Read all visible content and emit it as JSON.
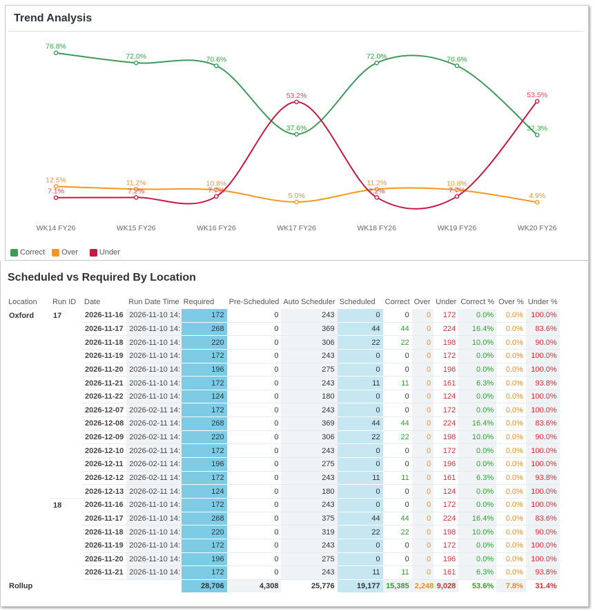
{
  "trend": {
    "title": "Trend Analysis",
    "legend": [
      {
        "label": "Correct",
        "color": "#3a9a57"
      },
      {
        "label": "Over",
        "color": "#f7961f"
      },
      {
        "label": "Under",
        "color": "#c8163f"
      }
    ]
  },
  "chart_data": {
    "type": "line",
    "title": "Trend Analysis",
    "xlabel": "",
    "ylabel": "",
    "categories": [
      "WK14 FY26",
      "WK15 FY26",
      "WK16 FY26",
      "WK17 FY26",
      "WK18 FY26",
      "WK19 FY26",
      "WK20 FY26"
    ],
    "series": [
      {
        "name": "Correct",
        "color": "#3a9a57",
        "label_color": "#2eaa3a",
        "values": [
          76.8,
          72.0,
          70.6,
          37.6,
          72.0,
          70.6,
          37.3
        ],
        "labels": [
          "76.8%",
          "72.0%",
          "70.6%",
          "37.6%",
          "72.0%",
          "70.6%",
          "37.3%"
        ]
      },
      {
        "name": "Over",
        "color": "#f7961f",
        "label_color": "#f0932f",
        "values": [
          12.5,
          11.2,
          10.8,
          5.0,
          11.2,
          10.8,
          4.9
        ],
        "labels": [
          "12.5%",
          "11.2%",
          "10.8%",
          "5.0%",
          "11.2%",
          "10.8%",
          "4.9%"
        ]
      },
      {
        "name": "Under",
        "color": "#c8163f",
        "label_color": "#f0434f",
        "values": [
          7.1,
          7.2,
          7.7,
          53.2,
          7.2,
          7.7,
          53.5
        ],
        "labels": [
          "7.1%",
          "7.2%",
          "7.7%",
          "53.2%",
          "7.2%",
          "7.7%",
          "53.5%"
        ]
      }
    ],
    "ylim": [
      0,
      85
    ],
    "grid": false,
    "legend_position": "bottom-left"
  },
  "table": {
    "title": "Scheduled vs Required By Location",
    "columns": [
      "Location",
      "Run ID",
      "Date",
      "Run Date Time",
      "Required",
      "Pre-Scheduled",
      "Auto Scheduler",
      "Scheduled",
      "Correct",
      "Over",
      "Under",
      "Correct %",
      "Over %",
      "Under %"
    ],
    "rows": [
      {
        "location": "Oxford",
        "run_id": "17",
        "date": "2026-11-16",
        "run_dt": "2026-11-10 14:",
        "required": "172",
        "pre": "0",
        "auto": "243",
        "scheduled": "0",
        "correct": "0",
        "over": "0",
        "under": "172",
        "correct_pct": "0.0%",
        "over_pct": "0.0%",
        "under_pct": "100.0%"
      },
      {
        "location": "",
        "run_id": "",
        "date": "2026-11-17",
        "run_dt": "2026-11-10 14:",
        "required": "268",
        "pre": "0",
        "auto": "369",
        "scheduled": "44",
        "correct": "44",
        "over": "0",
        "under": "224",
        "correct_pct": "16.4%",
        "over_pct": "0.0%",
        "under_pct": "83.6%"
      },
      {
        "location": "",
        "run_id": "",
        "date": "2026-11-18",
        "run_dt": "2026-11-10 14:",
        "required": "220",
        "pre": "0",
        "auto": "306",
        "scheduled": "22",
        "correct": "22",
        "over": "0",
        "under": "198",
        "correct_pct": "10.0%",
        "over_pct": "0.0%",
        "under_pct": "90.0%"
      },
      {
        "location": "",
        "run_id": "",
        "date": "2026-11-19",
        "run_dt": "2026-11-10 14:",
        "required": "172",
        "pre": "0",
        "auto": "243",
        "scheduled": "0",
        "correct": "0",
        "over": "0",
        "under": "172",
        "correct_pct": "0.0%",
        "over_pct": "0.0%",
        "under_pct": "100.0%"
      },
      {
        "location": "",
        "run_id": "",
        "date": "2026-11-20",
        "run_dt": "2026-11-10 14:",
        "required": "196",
        "pre": "0",
        "auto": "275",
        "scheduled": "0",
        "correct": "0",
        "over": "0",
        "under": "196",
        "correct_pct": "0.0%",
        "over_pct": "0.0%",
        "under_pct": "100.0%"
      },
      {
        "location": "",
        "run_id": "",
        "date": "2026-11-21",
        "run_dt": "2026-11-10 14:",
        "required": "172",
        "pre": "0",
        "auto": "243",
        "scheduled": "11",
        "correct": "11",
        "over": "0",
        "under": "161",
        "correct_pct": "6.3%",
        "over_pct": "0.0%",
        "under_pct": "93.8%"
      },
      {
        "location": "",
        "run_id": "",
        "date": "2026-11-22",
        "run_dt": "2026-11-10 14:",
        "required": "124",
        "pre": "0",
        "auto": "180",
        "scheduled": "0",
        "correct": "0",
        "over": "0",
        "under": "124",
        "correct_pct": "0.0%",
        "over_pct": "0.0%",
        "under_pct": "100.0%"
      },
      {
        "location": "",
        "run_id": "",
        "date": "2026-12-07",
        "run_dt": "2026-02-11 14:",
        "required": "172",
        "pre": "0",
        "auto": "243",
        "scheduled": "0",
        "correct": "0",
        "over": "0",
        "under": "172",
        "correct_pct": "0.0%",
        "over_pct": "0.0%",
        "under_pct": "100.0%"
      },
      {
        "location": "",
        "run_id": "",
        "date": "2026-12-08",
        "run_dt": "2026-02-11 14:",
        "required": "268",
        "pre": "0",
        "auto": "369",
        "scheduled": "44",
        "correct": "44",
        "over": "0",
        "under": "224",
        "correct_pct": "16.4%",
        "over_pct": "0.0%",
        "under_pct": "83.6%"
      },
      {
        "location": "",
        "run_id": "",
        "date": "2026-12-09",
        "run_dt": "2026-02-11 14:",
        "required": "220",
        "pre": "0",
        "auto": "306",
        "scheduled": "22",
        "correct": "22",
        "over": "0",
        "under": "198",
        "correct_pct": "10.0%",
        "over_pct": "0.0%",
        "under_pct": "90.0%"
      },
      {
        "location": "",
        "run_id": "",
        "date": "2026-12-10",
        "run_dt": "2026-02-11 14:",
        "required": "172",
        "pre": "0",
        "auto": "243",
        "scheduled": "0",
        "correct": "0",
        "over": "0",
        "under": "172",
        "correct_pct": "0.0%",
        "over_pct": "0.0%",
        "under_pct": "100.0%"
      },
      {
        "location": "",
        "run_id": "",
        "date": "2026-12-11",
        "run_dt": "2026-02-11 14:",
        "required": "196",
        "pre": "0",
        "auto": "275",
        "scheduled": "0",
        "correct": "0",
        "over": "0",
        "under": "196",
        "correct_pct": "0.0%",
        "over_pct": "0.0%",
        "under_pct": "100.0%"
      },
      {
        "location": "",
        "run_id": "",
        "date": "2026-12-12",
        "run_dt": "2026-02-11 14:",
        "required": "172",
        "pre": "0",
        "auto": "243",
        "scheduled": "11",
        "correct": "11",
        "over": "0",
        "under": "161",
        "correct_pct": "6.3%",
        "over_pct": "0.0%",
        "under_pct": "93.8%"
      },
      {
        "location": "",
        "run_id": "",
        "date": "2026-12-13",
        "run_dt": "2026-02-11 14:",
        "required": "124",
        "pre": "0",
        "auto": "180",
        "scheduled": "0",
        "correct": "0",
        "over": "0",
        "under": "124",
        "correct_pct": "0.0%",
        "over_pct": "0.0%",
        "under_pct": "100.0%"
      },
      {
        "location": "",
        "run_id": "18",
        "date": "2026-11-16",
        "run_dt": "2026-11-10 14:",
        "required": "172",
        "pre": "0",
        "auto": "243",
        "scheduled": "0",
        "correct": "0",
        "over": "0",
        "under": "172",
        "correct_pct": "0.0%",
        "over_pct": "0.0%",
        "under_pct": "100.0%"
      },
      {
        "location": "",
        "run_id": "",
        "date": "2026-11-17",
        "run_dt": "2026-11-10 14:",
        "required": "268",
        "pre": "0",
        "auto": "375",
        "scheduled": "44",
        "correct": "44",
        "over": "0",
        "under": "224",
        "correct_pct": "16.4%",
        "over_pct": "0.0%",
        "under_pct": "83.6%"
      },
      {
        "location": "",
        "run_id": "",
        "date": "2026-11-18",
        "run_dt": "2026-11-10 14:",
        "required": "220",
        "pre": "0",
        "auto": "319",
        "scheduled": "22",
        "correct": "22",
        "over": "0",
        "under": "198",
        "correct_pct": "10.0%",
        "over_pct": "0.0%",
        "under_pct": "90.0%"
      },
      {
        "location": "",
        "run_id": "",
        "date": "2026-11-19",
        "run_dt": "2026-11-10 14:",
        "required": "172",
        "pre": "0",
        "auto": "243",
        "scheduled": "0",
        "correct": "0",
        "over": "0",
        "under": "172",
        "correct_pct": "0.0%",
        "over_pct": "0.0%",
        "under_pct": "100.0%"
      },
      {
        "location": "",
        "run_id": "",
        "date": "2026-11-20",
        "run_dt": "2026-11-10 14:",
        "required": "196",
        "pre": "0",
        "auto": "275",
        "scheduled": "0",
        "correct": "0",
        "over": "0",
        "under": "196",
        "correct_pct": "0.0%",
        "over_pct": "0.0%",
        "under_pct": "100.0%"
      },
      {
        "location": "",
        "run_id": "",
        "date": "2026-11-21",
        "run_dt": "2026-11-10 14:",
        "required": "172",
        "pre": "0",
        "auto": "243",
        "scheduled": "11",
        "correct": "11",
        "over": "0",
        "under": "161",
        "correct_pct": "6.3%",
        "over_pct": "0.0%",
        "under_pct": "93.8%"
      }
    ],
    "rollup": {
      "label": "Rollup",
      "required": "28,706",
      "pre": "4,308",
      "auto": "25,776",
      "scheduled": "19,177",
      "correct": "15,385",
      "over": "2,248",
      "under": "9,028",
      "correct_pct": "53.6%",
      "over_pct": "7.8%",
      "under_pct": "31.4%"
    }
  }
}
